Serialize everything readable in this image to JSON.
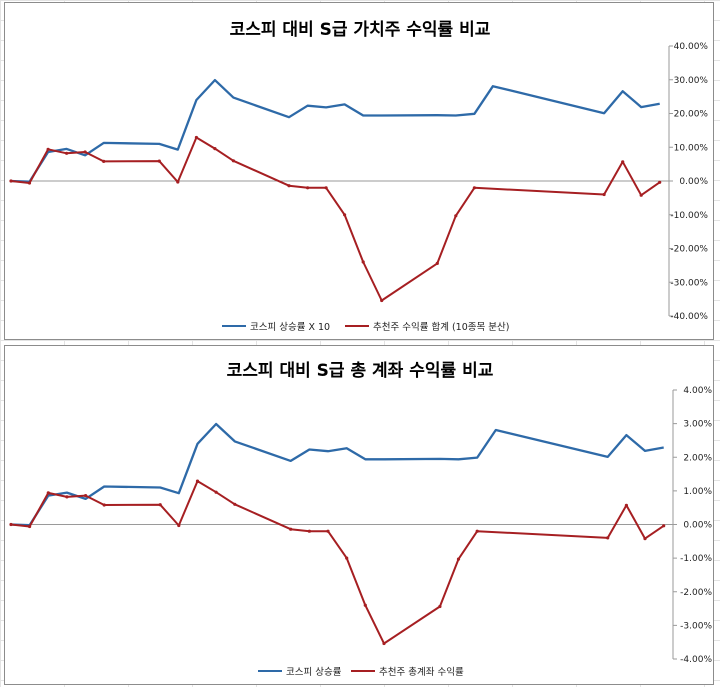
{
  "colors": {
    "kospi": "#2e6aa8",
    "picks": "#a61f22"
  },
  "chart_data": [
    {
      "type": "line",
      "title": "코스피 대비 S급 가치주 수익률 비교",
      "y_tick_labels": [
        "40.00%",
        "30.00%",
        "20.00%",
        "10.00%",
        "0.00%",
        "-10.00%",
        "-20.00%",
        "-30.00%",
        "-40.00%"
      ],
      "ylim": [
        -40,
        40
      ],
      "x": [
        0,
        1,
        2,
        3,
        4,
        5,
        8,
        9,
        10,
        11,
        12,
        15,
        16,
        17,
        18,
        19,
        20,
        23,
        24,
        25,
        26,
        32,
        33,
        34,
        35
      ],
      "xlim": [
        0,
        35.5
      ],
      "legend_position": "bottom",
      "series": [
        {
          "name": "코스피 상승률 X 10",
          "color_key": "kospi",
          "values": [
            0.0,
            -0.2,
            8.6,
            9.5,
            7.6,
            11.3,
            11.0,
            9.3,
            24.0,
            29.9,
            24.7,
            18.9,
            22.3,
            21.8,
            22.7,
            19.4,
            19.4,
            19.5,
            19.4,
            19.9,
            28.1,
            20.1,
            26.6,
            21.9,
            22.9
          ]
        },
        {
          "name": "추천주 수익률 합계 (10종목 분산)",
          "color_key": "picks",
          "values": [
            0.0,
            -0.6,
            9.4,
            8.2,
            8.6,
            5.8,
            5.9,
            -0.3,
            12.9,
            9.6,
            6.0,
            -1.4,
            -2.0,
            -2.0,
            -10.0,
            -24.0,
            -35.4,
            -24.4,
            -10.3,
            -2.0,
            null,
            -4.0,
            5.7,
            -4.2,
            -0.4
          ]
        }
      ]
    },
    {
      "type": "line",
      "title": "코스피 대비 S급 총 계좌 수익률 비교",
      "y_tick_labels": [
        "4.00%",
        "3.00%",
        "2.00%",
        "1.00%",
        "0.00%",
        "-1.00%",
        "-2.00%",
        "-3.00%",
        "-4.00%"
      ],
      "ylim": [
        -4,
        4
      ],
      "x": [
        0,
        1,
        2,
        3,
        4,
        5,
        8,
        9,
        10,
        11,
        12,
        15,
        16,
        17,
        18,
        19,
        20,
        23,
        24,
        25,
        26,
        32,
        33,
        34,
        35
      ],
      "xlim": [
        0,
        35.5
      ],
      "legend_position": "bottom",
      "series": [
        {
          "name": "코스피 상승률",
          "color_key": "kospi",
          "values": [
            0.0,
            -0.02,
            0.86,
            0.95,
            0.76,
            1.13,
            1.1,
            0.93,
            2.4,
            2.99,
            2.47,
            1.89,
            2.23,
            2.18,
            2.27,
            1.94,
            1.94,
            1.95,
            1.94,
            1.99,
            2.81,
            2.01,
            2.66,
            2.19,
            2.29
          ]
        },
        {
          "name": "추천주 총계좌 수익률",
          "color_key": "picks",
          "values": [
            0.0,
            -0.06,
            0.94,
            0.82,
            0.86,
            0.58,
            0.59,
            -0.03,
            1.29,
            0.96,
            0.6,
            -0.14,
            -0.2,
            -0.2,
            -1.0,
            -2.4,
            -3.54,
            -2.44,
            -1.03,
            -0.2,
            null,
            -0.4,
            0.57,
            -0.42,
            -0.04
          ]
        }
      ]
    }
  ]
}
